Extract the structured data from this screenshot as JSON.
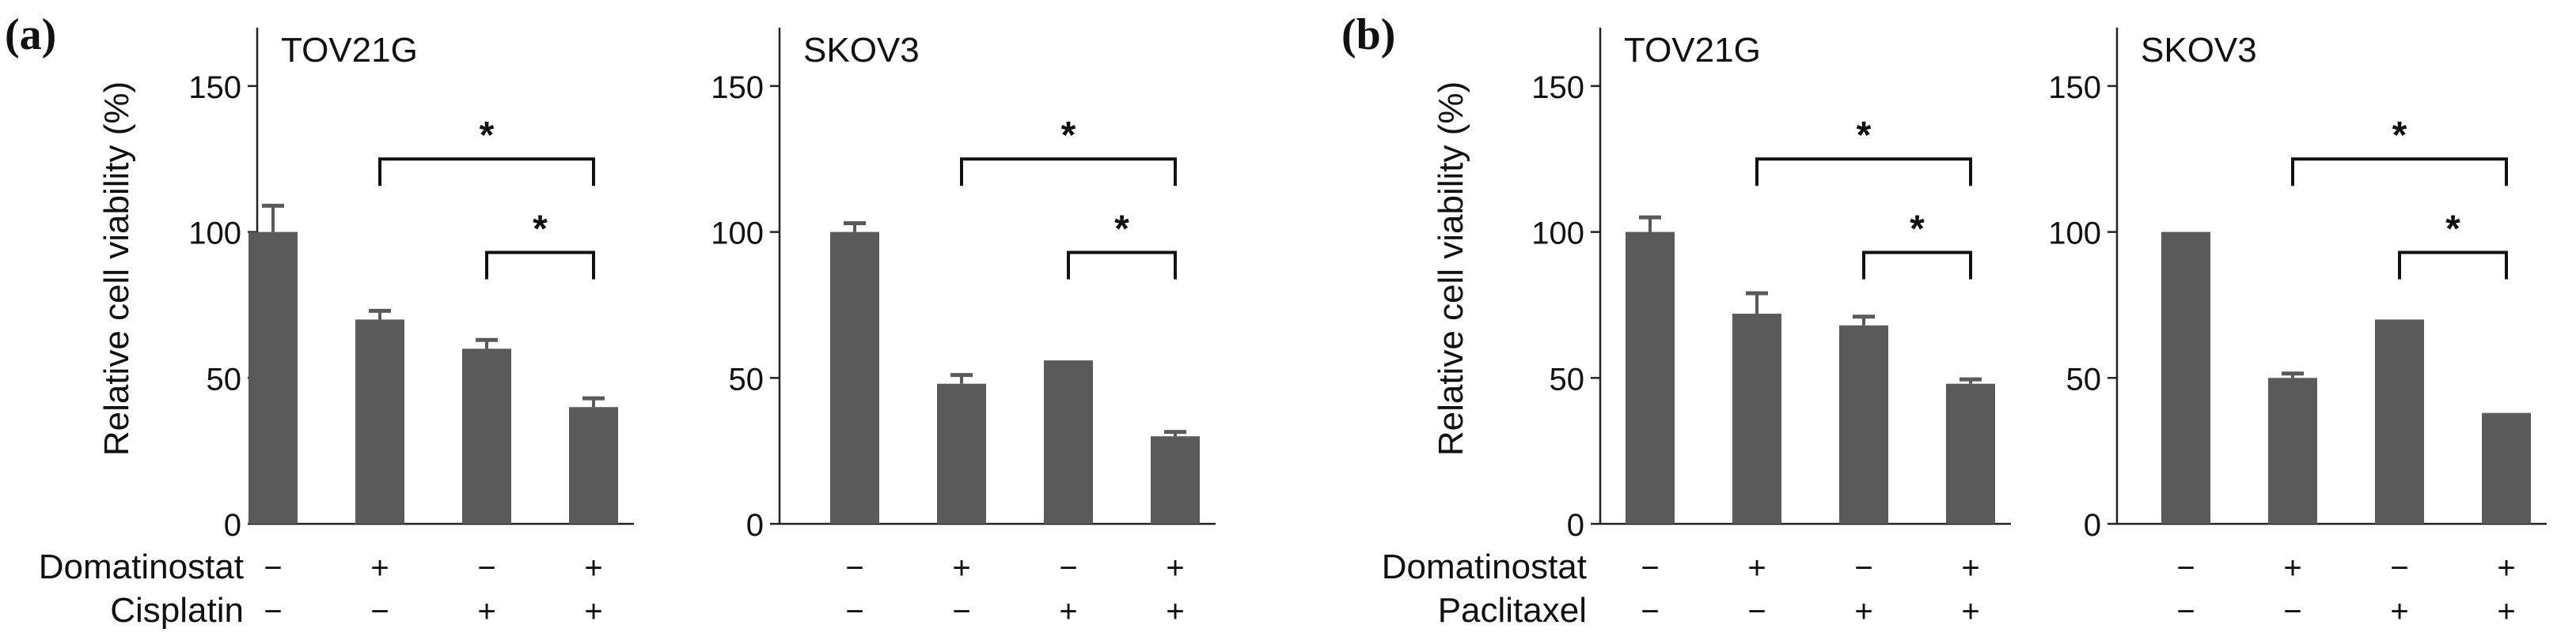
{
  "figure": {
    "panel_a_label": "(a)",
    "panel_b_label": "(b)",
    "ylabel": "Relative cell viability (%)"
  },
  "colors": {
    "bar": "#5a5a5a",
    "axis": "#222222",
    "text": "#111111"
  },
  "chart_data": [
    {
      "type": "bar",
      "panel": "a",
      "title": "TOV21G",
      "ylabel": "Relative cell viability (%)",
      "ylim": [
        0,
        170
      ],
      "yticks": [
        0,
        50,
        100,
        150
      ],
      "treatments": [
        {
          "label": "Domatinostat",
          "marks": [
            "−",
            "+",
            "−",
            "+"
          ]
        },
        {
          "label": "Cisplatin",
          "marks": [
            "−",
            "−",
            "+",
            "+"
          ]
        }
      ],
      "values": [
        100,
        70,
        60,
        40
      ],
      "errors": [
        9,
        3,
        3,
        3
      ],
      "significance": [
        {
          "from": 1,
          "to": 3,
          "label": "*",
          "y": 125
        },
        {
          "from": 2,
          "to": 3,
          "label": "*",
          "y": 93
        }
      ]
    },
    {
      "type": "bar",
      "panel": "a",
      "title": "SKOV3",
      "ylim": [
        0,
        170
      ],
      "yticks": [
        0,
        50,
        100,
        150
      ],
      "treatments": [
        {
          "label": "",
          "marks": [
            "−",
            "+",
            "−",
            "+"
          ]
        },
        {
          "label": "",
          "marks": [
            "−",
            "−",
            "+",
            "+"
          ]
        }
      ],
      "values": [
        100,
        48,
        56,
        30
      ],
      "errors": [
        3,
        3,
        0,
        1.5
      ],
      "significance": [
        {
          "from": 1,
          "to": 3,
          "label": "*",
          "y": 125
        },
        {
          "from": 2,
          "to": 3,
          "label": "*",
          "y": 93
        }
      ]
    },
    {
      "type": "bar",
      "panel": "b",
      "title": "TOV21G",
      "ylabel": "Relative cell viability (%)",
      "ylim": [
        0,
        170
      ],
      "yticks": [
        0,
        50,
        100,
        150
      ],
      "treatments": [
        {
          "label": "Domatinostat",
          "marks": [
            "−",
            "+",
            "−",
            "+"
          ]
        },
        {
          "label": "Paclitaxel",
          "marks": [
            "−",
            "−",
            "+",
            "+"
          ]
        }
      ],
      "values": [
        100,
        72,
        68,
        48
      ],
      "errors": [
        5,
        7,
        3,
        1.5
      ],
      "significance": [
        {
          "from": 1,
          "to": 3,
          "label": "*",
          "y": 125
        },
        {
          "from": 2,
          "to": 3,
          "label": "*",
          "y": 93
        }
      ]
    },
    {
      "type": "bar",
      "panel": "b",
      "title": "SKOV3",
      "ylim": [
        0,
        170
      ],
      "yticks": [
        0,
        50,
        100,
        150
      ],
      "treatments": [
        {
          "label": "",
          "marks": [
            "−",
            "+",
            "−",
            "+"
          ]
        },
        {
          "label": "",
          "marks": [
            "−",
            "−",
            "+",
            "+"
          ]
        }
      ],
      "values": [
        100,
        50,
        70,
        38
      ],
      "errors": [
        0,
        1.5,
        0,
        0
      ],
      "significance": [
        {
          "from": 1,
          "to": 3,
          "label": "*",
          "y": 125
        },
        {
          "from": 2,
          "to": 3,
          "label": "*",
          "y": 93
        }
      ]
    }
  ]
}
